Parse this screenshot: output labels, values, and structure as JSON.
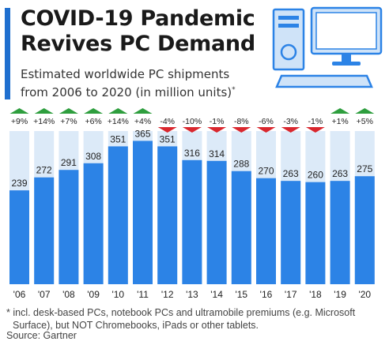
{
  "header": {
    "title_line1": "COVID-19 Pandemic",
    "title_line2": "Revives PC Demand",
    "subtitle_line1": "Estimated worldwide PC shipments",
    "subtitle_line2": "from 2006 to 2020 (in million units)",
    "subtitle_marker": "*"
  },
  "colors": {
    "bar": "#2c83e6",
    "column_bg": "#dceaf8",
    "up": "#2e9e3e",
    "down": "#d9272e",
    "accent": "#1f6fcf"
  },
  "chart_data": {
    "type": "bar",
    "categories": [
      "'06",
      "'07",
      "'08",
      "'09",
      "'10",
      "'11",
      "'12",
      "'13",
      "'14",
      "'15",
      "'16",
      "'17",
      "'18",
      "'19",
      "'20"
    ],
    "values": [
      239,
      272,
      291,
      308,
      351,
      365,
      351,
      316,
      314,
      288,
      270,
      263,
      260,
      263,
      275
    ],
    "changes": [
      "+9%",
      "+14%",
      "+7%",
      "+6%",
      "+14%",
      "+4%",
      "-4%",
      "-10%",
      "-1%",
      "-8%",
      "-6%",
      "-3%",
      "-1%",
      "+1%",
      "+5%"
    ],
    "title": "",
    "xlabel": "",
    "ylabel": "",
    "ylim": [
      0,
      390
    ]
  },
  "footnote": {
    "line1": "* incl. desk-based PCs, notebook PCs and ultramobile premiums (e.g. Microsoft",
    "line2": "Surface), but NOT Chromebooks, iPads or other tablets.",
    "source": "Source: Gartner"
  },
  "icon": "desktop-pc-icon"
}
